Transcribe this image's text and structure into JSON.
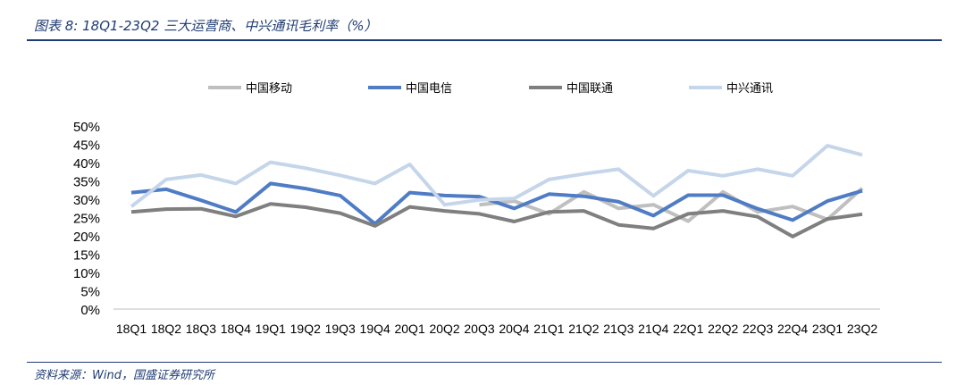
{
  "title": "图表 8:  18Q1-23Q2 三大运营商、中兴通讯毛利率（%）",
  "source": "资料来源：Wind，国盛证券研究所",
  "chart_data": {
    "type": "line",
    "title": "18Q1-23Q2 三大运营商、中兴通讯毛利率（%）",
    "xlabel": "",
    "ylabel": "",
    "ylim": [
      0,
      50
    ],
    "yticks": [
      "0%",
      "5%",
      "10%",
      "15%",
      "20%",
      "25%",
      "30%",
      "35%",
      "40%",
      "45%",
      "50%"
    ],
    "legend_position": "top",
    "categories": [
      "18Q1",
      "18Q2",
      "18Q3",
      "18Q4",
      "19Q1",
      "19Q2",
      "19Q3",
      "19Q4",
      "20Q1",
      "20Q2",
      "20Q3",
      "20Q4",
      "21Q1",
      "21Q2",
      "21Q3",
      "21Q4",
      "22Q1",
      "22Q2",
      "22Q3",
      "22Q4",
      "23Q1",
      "23Q2"
    ],
    "series": [
      {
        "name": "中国移动",
        "color": "#bfbfbf",
        "values": [
          null,
          null,
          null,
          null,
          null,
          null,
          null,
          null,
          null,
          null,
          28.5,
          29.5,
          26,
          32,
          27.5,
          28.5,
          24,
          32,
          26.5,
          28,
          24.5,
          33
        ]
      },
      {
        "name": "中国电信",
        "color": "#4f7cc4",
        "values": [
          31.8,
          32.7,
          29.7,
          26.5,
          34.3,
          32.9,
          31,
          23.3,
          31.8,
          31,
          30.7,
          27.5,
          31.4,
          30.8,
          29.3,
          25.5,
          31.1,
          31.1,
          27.4,
          24.3,
          29.5,
          32.3
        ]
      },
      {
        "name": "中国联通",
        "color": "#7f7f7f",
        "values": [
          26.5,
          27.3,
          27.4,
          25.3,
          28.7,
          27.8,
          26.2,
          22.7,
          27.9,
          26.8,
          26,
          23.9,
          26.5,
          26.8,
          23,
          22,
          26,
          26.8,
          25.2,
          19.8,
          24.6,
          25.9
        ]
      },
      {
        "name": "中兴通讯",
        "color": "#c5d5ea",
        "values": [
          28,
          35.4,
          36.6,
          34.3,
          40.1,
          38.5,
          36.5,
          34.3,
          39.5,
          28.5,
          29.8,
          30.2,
          35.4,
          36.9,
          38.2,
          30.9,
          37.8,
          36.4,
          38.2,
          36.4,
          44.6,
          42.1
        ]
      }
    ]
  }
}
